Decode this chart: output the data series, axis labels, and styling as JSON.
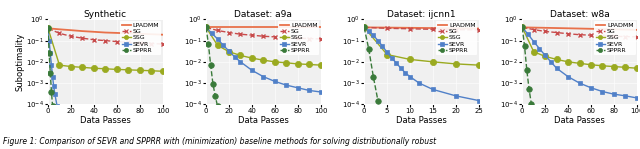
{
  "panels": [
    {
      "title": "Synthetic",
      "xlabel": "Data Passes",
      "ylabel": "Suboptimality",
      "xlim": [
        0,
        100
      ],
      "xticks": [
        0,
        20,
        40,
        60,
        80,
        100
      ],
      "ylim": [
        0.0001,
        1.0
      ],
      "series": [
        {
          "label": "LPADMM",
          "color": "#e8714a",
          "linestyle": "-",
          "marker": null,
          "lw": 1.3,
          "x": [
            0,
            10,
            20,
            30,
            40,
            50,
            60,
            70,
            80,
            90,
            100
          ],
          "y": [
            0.38,
            0.34,
            0.31,
            0.28,
            0.26,
            0.24,
            0.23,
            0.22,
            0.21,
            0.2,
            0.19
          ]
        },
        {
          "label": "SG",
          "color": "#c84b4b",
          "linestyle": "--",
          "marker": "x",
          "lw": 1.0,
          "ms": 3.5,
          "x": [
            0,
            10,
            20,
            30,
            40,
            50,
            60,
            70,
            80,
            90,
            100
          ],
          "y": [
            0.38,
            0.22,
            0.16,
            0.13,
            0.11,
            0.1,
            0.09,
            0.083,
            0.077,
            0.073,
            0.069
          ]
        },
        {
          "label": "SSG",
          "color": "#9aaa20",
          "linestyle": "-",
          "marker": "o",
          "lw": 1.0,
          "ms": 4.5,
          "mfc": "#9aaa20",
          "x": [
            0,
            10,
            20,
            30,
            40,
            50,
            60,
            70,
            80,
            90,
            100
          ],
          "y": [
            0.38,
            0.007,
            0.006,
            0.0055,
            0.005,
            0.0047,
            0.0044,
            0.0042,
            0.004,
            0.0038,
            0.0036
          ]
        },
        {
          "label": "SEVR",
          "color": "#5080c8",
          "linestyle": "-",
          "marker": "s",
          "lw": 1.0,
          "ms": 3.5,
          "mfc": "#5080c8",
          "x": [
            0,
            1,
            2,
            3,
            4,
            5,
            6,
            8,
            10,
            12
          ],
          "y": [
            0.38,
            0.1,
            0.025,
            0.007,
            0.002,
            0.0007,
            0.0003,
            8e-05,
            3e-05,
            2e-05
          ]
        },
        {
          "label": "SPPRR",
          "color": "#3a7a3a",
          "linestyle": "--",
          "marker": "o",
          "lw": 1.0,
          "ms": 4.0,
          "mfc": "#3a7a3a",
          "x": [
            0,
            1,
            2,
            3,
            4,
            5,
            6,
            7,
            8
          ],
          "y": [
            0.38,
            0.025,
            0.003,
            0.0004,
            8e-05,
            3e-05,
            1.8e-05,
            1.4e-05,
            1.2e-05
          ]
        }
      ]
    },
    {
      "title": "Dataset: a9a",
      "xlabel": "Data Passes",
      "ylabel": "",
      "xlim": [
        0,
        100
      ],
      "xticks": [
        0,
        20,
        40,
        60,
        80,
        100
      ],
      "ylim": [
        0.0001,
        1.0
      ],
      "series": [
        {
          "label": "LPADMM",
          "color": "#e8714a",
          "linestyle": "-",
          "marker": null,
          "lw": 1.3,
          "x": [
            0,
            10,
            20,
            30,
            40,
            50,
            60,
            70,
            80,
            90,
            100
          ],
          "y": [
            0.42,
            0.42,
            0.42,
            0.42,
            0.42,
            0.42,
            0.42,
            0.42,
            0.42,
            0.42,
            0.42
          ]
        },
        {
          "label": "SG",
          "color": "#c84b4b",
          "linestyle": "--",
          "marker": "x",
          "lw": 1.0,
          "ms": 3.5,
          "x": [
            0,
            10,
            20,
            30,
            40,
            50,
            60,
            70,
            80,
            90,
            100
          ],
          "y": [
            0.42,
            0.3,
            0.24,
            0.2,
            0.18,
            0.16,
            0.15,
            0.14,
            0.13,
            0.125,
            0.12
          ]
        },
        {
          "label": "SSG",
          "color": "#9aaa20",
          "linestyle": "-",
          "marker": "o",
          "lw": 1.0,
          "ms": 4.5,
          "mfc": "#9aaa20",
          "x": [
            0,
            10,
            20,
            30,
            40,
            50,
            60,
            70,
            80,
            90,
            100
          ],
          "y": [
            0.42,
            0.06,
            0.03,
            0.02,
            0.015,
            0.012,
            0.01,
            0.009,
            0.008,
            0.0075,
            0.007
          ]
        },
        {
          "label": "SEVR",
          "color": "#5080c8",
          "linestyle": "-",
          "marker": "s",
          "lw": 1.0,
          "ms": 3.5,
          "mfc": "#5080c8",
          "x": [
            0,
            5,
            10,
            15,
            20,
            25,
            30,
            40,
            50,
            60,
            70,
            80,
            90,
            100
          ],
          "y": [
            0.42,
            0.22,
            0.12,
            0.06,
            0.032,
            0.017,
            0.01,
            0.004,
            0.002,
            0.0012,
            0.0008,
            0.0006,
            0.00045,
            0.00038
          ]
        },
        {
          "label": "SPPRR",
          "color": "#3a7a3a",
          "linestyle": "--",
          "marker": "o",
          "lw": 1.0,
          "ms": 4.0,
          "mfc": "#3a7a3a",
          "x": [
            0,
            2,
            4,
            6,
            8,
            10,
            15,
            20,
            25,
            30
          ],
          "y": [
            0.42,
            0.07,
            0.007,
            0.0009,
            0.00025,
            8e-05,
            2.5e-05,
            1.5e-05,
            1.2e-05,
            1e-05
          ]
        }
      ]
    },
    {
      "title": "Dataset: ijcnn1",
      "xlabel": "Data Passes",
      "ylabel": "",
      "xlim": [
        0,
        25
      ],
      "xticks": [
        0,
        5,
        10,
        15,
        20,
        25
      ],
      "ylim": [
        0.0001,
        1.0
      ],
      "series": [
        {
          "label": "LPADMM",
          "color": "#e8714a",
          "linestyle": "-",
          "marker": null,
          "lw": 1.3,
          "x": [
            0,
            5,
            10,
            15,
            20,
            25
          ],
          "y": [
            0.42,
            0.41,
            0.4,
            0.39,
            0.38,
            0.37
          ]
        },
        {
          "label": "SG",
          "color": "#c84b4b",
          "linestyle": "--",
          "marker": "x",
          "lw": 1.0,
          "ms": 3.5,
          "x": [
            0,
            5,
            10,
            15,
            20,
            25
          ],
          "y": [
            0.42,
            0.38,
            0.36,
            0.34,
            0.33,
            0.32
          ]
        },
        {
          "label": "SSG",
          "color": "#9aaa20",
          "linestyle": "-",
          "marker": "o",
          "lw": 1.0,
          "ms": 4.5,
          "mfc": "#9aaa20",
          "x": [
            0,
            5,
            10,
            15,
            20,
            25
          ],
          "y": [
            0.42,
            0.022,
            0.013,
            0.01,
            0.008,
            0.007
          ]
        },
        {
          "label": "SEVR",
          "color": "#5080c8",
          "linestyle": "-",
          "marker": "s",
          "lw": 1.0,
          "ms": 3.5,
          "mfc": "#5080c8",
          "x": [
            0,
            1,
            2,
            3,
            4,
            5,
            6,
            7,
            8,
            9,
            10,
            12,
            15,
            20,
            25
          ],
          "y": [
            0.42,
            0.28,
            0.18,
            0.1,
            0.055,
            0.028,
            0.015,
            0.009,
            0.005,
            0.003,
            0.002,
            0.001,
            0.0005,
            0.00025,
            0.00015
          ]
        },
        {
          "label": "SPPRR",
          "color": "#3a7a3a",
          "linestyle": "--",
          "marker": "o",
          "lw": 1.0,
          "ms": 4.0,
          "mfc": "#3a7a3a",
          "x": [
            0,
            1,
            2,
            3,
            4,
            5,
            6,
            7
          ],
          "y": [
            0.42,
            0.04,
            0.002,
            0.00015,
            2e-05,
            8e-06,
            5e-06,
            4e-06
          ]
        }
      ]
    },
    {
      "title": "Dataset: w8a",
      "xlabel": "Data Passes",
      "ylabel": "",
      "xlim": [
        0,
        100
      ],
      "xticks": [
        0,
        20,
        40,
        60,
        80,
        100
      ],
      "ylim": [
        0.0001,
        1.0
      ],
      "series": [
        {
          "label": "LPADMM",
          "color": "#e8714a",
          "linestyle": "-",
          "marker": null,
          "lw": 1.3,
          "x": [
            0,
            10,
            20,
            30,
            40,
            50,
            60,
            70,
            80,
            90,
            100
          ],
          "y": [
            0.42,
            0.41,
            0.4,
            0.39,
            0.38,
            0.37,
            0.36,
            0.35,
            0.34,
            0.33,
            0.32
          ]
        },
        {
          "label": "SG",
          "color": "#c84b4b",
          "linestyle": "--",
          "marker": "x",
          "lw": 1.0,
          "ms": 3.5,
          "x": [
            0,
            10,
            20,
            30,
            40,
            50,
            60,
            70,
            80,
            90,
            100
          ],
          "y": [
            0.42,
            0.33,
            0.27,
            0.24,
            0.21,
            0.19,
            0.18,
            0.17,
            0.16,
            0.155,
            0.15
          ]
        },
        {
          "label": "SSG",
          "color": "#9aaa20",
          "linestyle": "-",
          "marker": "o",
          "lw": 1.0,
          "ms": 4.5,
          "mfc": "#9aaa20",
          "x": [
            0,
            10,
            20,
            30,
            40,
            50,
            60,
            70,
            80,
            90,
            100
          ],
          "y": [
            0.42,
            0.03,
            0.018,
            0.013,
            0.01,
            0.0085,
            0.0073,
            0.0065,
            0.006,
            0.0055,
            0.005
          ]
        },
        {
          "label": "SEVR",
          "color": "#5080c8",
          "linestyle": "-",
          "marker": "s",
          "lw": 1.0,
          "ms": 3.5,
          "mfc": "#5080c8",
          "x": [
            0,
            5,
            10,
            15,
            20,
            25,
            30,
            40,
            50,
            60,
            70,
            80,
            90,
            100
          ],
          "y": [
            0.42,
            0.2,
            0.09,
            0.042,
            0.02,
            0.01,
            0.005,
            0.002,
            0.001,
            0.0006,
            0.0004,
            0.0003,
            0.00025,
            0.0002
          ]
        },
        {
          "label": "SPPRR",
          "color": "#3a7a3a",
          "linestyle": "--",
          "marker": "o",
          "lw": 1.0,
          "ms": 4.0,
          "mfc": "#3a7a3a",
          "x": [
            0,
            2,
            4,
            6,
            8,
            10,
            15,
            20,
            25
          ],
          "y": [
            0.42,
            0.055,
            0.004,
            0.0005,
            0.0001,
            3e-05,
            1e-05,
            7e-06,
            6e-06
          ]
        }
      ]
    }
  ],
  "caption": "Figure 1: Comparison of SEVR and SPPRR with (minimization) baseline methods for solving distributionally robust",
  "figure_bg": "#ffffff",
  "axes_bg": "#f0f0f0",
  "legend_pos": "upper right"
}
